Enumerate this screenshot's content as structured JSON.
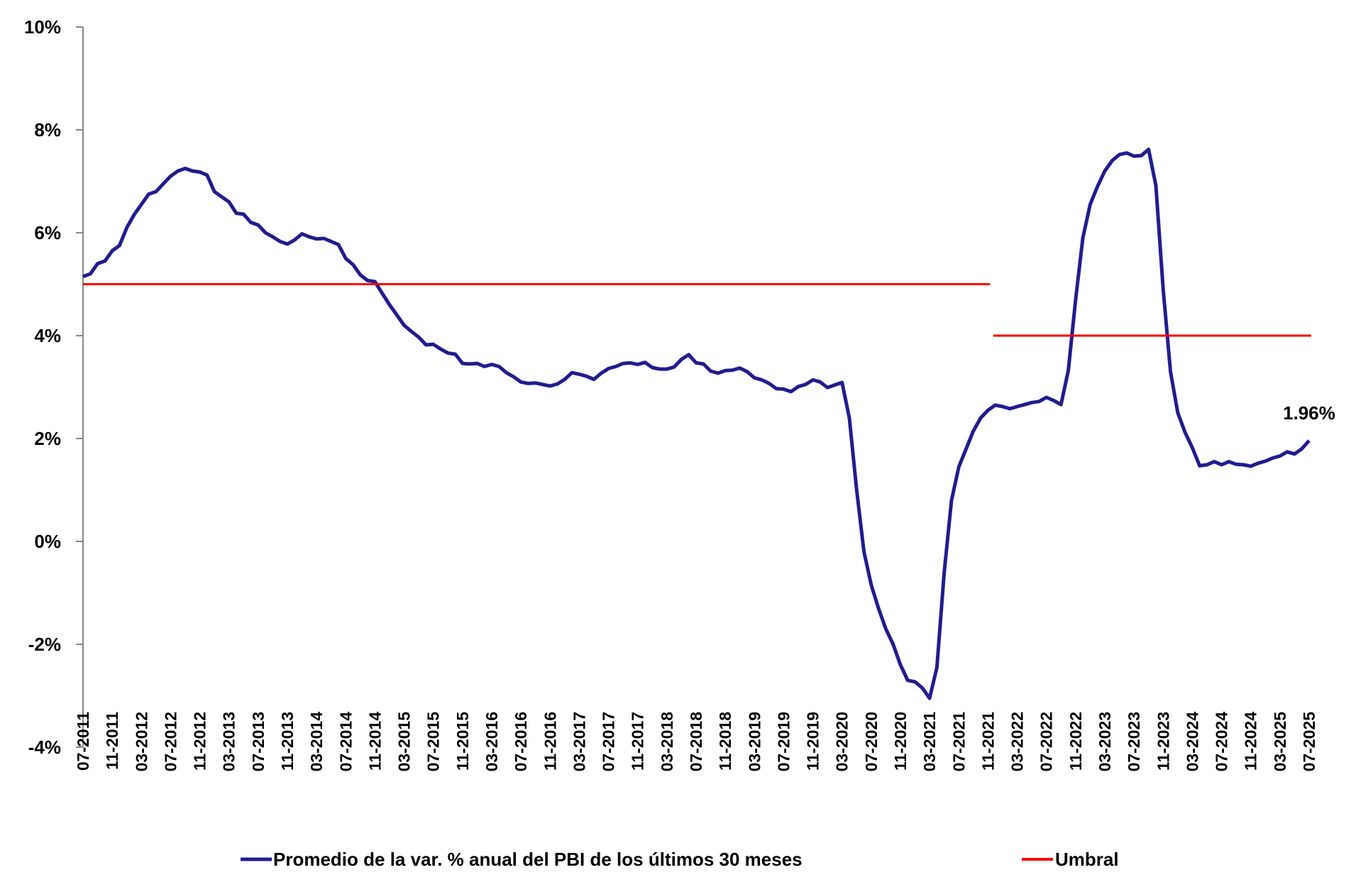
{
  "chart_data": {
    "type": "line",
    "title": "",
    "xlabel": "",
    "ylabel": "",
    "ylim": [
      -4,
      10
    ],
    "y_ticks": [
      "10%",
      "8%",
      "6%",
      "4%",
      "2%",
      "0%",
      "-2%",
      "-4%"
    ],
    "y_tick_values": [
      10,
      8,
      6,
      4,
      2,
      0,
      -2,
      -4
    ],
    "x_tick_every_months": 4,
    "grid": false,
    "legend_position": "bottom",
    "x": [
      "07-2011",
      "08-2011",
      "09-2011",
      "10-2011",
      "11-2011",
      "12-2011",
      "01-2012",
      "02-2012",
      "03-2012",
      "04-2012",
      "05-2012",
      "06-2012",
      "07-2012",
      "08-2012",
      "09-2012",
      "10-2012",
      "11-2012",
      "12-2012",
      "01-2013",
      "02-2013",
      "03-2013",
      "04-2013",
      "05-2013",
      "06-2013",
      "07-2013",
      "08-2013",
      "09-2013",
      "10-2013",
      "11-2013",
      "12-2013",
      "01-2014",
      "02-2014",
      "03-2014",
      "04-2014",
      "05-2014",
      "06-2014",
      "07-2014",
      "08-2014",
      "09-2014",
      "10-2014",
      "11-2014",
      "12-2014",
      "01-2015",
      "02-2015",
      "03-2015",
      "04-2015",
      "05-2015",
      "06-2015",
      "07-2015",
      "08-2015",
      "09-2015",
      "10-2015",
      "11-2015",
      "12-2015",
      "01-2016",
      "02-2016",
      "03-2016",
      "04-2016",
      "05-2016",
      "06-2016",
      "07-2016",
      "08-2016",
      "09-2016",
      "10-2016",
      "11-2016",
      "12-2016",
      "01-2017",
      "02-2017",
      "03-2017",
      "04-2017",
      "05-2017",
      "06-2017",
      "07-2017",
      "08-2017",
      "09-2017",
      "10-2017",
      "11-2017",
      "12-2017",
      "01-2018",
      "02-2018",
      "03-2018",
      "04-2018",
      "05-2018",
      "06-2018",
      "07-2018",
      "08-2018",
      "09-2018",
      "10-2018",
      "11-2018",
      "12-2018",
      "01-2019",
      "02-2019",
      "03-2019",
      "04-2019",
      "05-2019",
      "06-2019",
      "07-2019",
      "08-2019",
      "09-2019",
      "10-2019",
      "11-2019",
      "12-2019",
      "01-2020",
      "02-2020",
      "03-2020",
      "04-2020",
      "05-2020",
      "06-2020",
      "07-2020",
      "08-2020",
      "09-2020",
      "10-2020",
      "11-2020",
      "12-2020",
      "01-2021",
      "02-2021",
      "03-2021",
      "04-2021",
      "05-2021",
      "06-2021",
      "07-2021",
      "08-2021",
      "09-2021",
      "10-2021",
      "11-2021",
      "12-2021",
      "01-2022",
      "02-2022",
      "03-2022",
      "04-2022",
      "05-2022",
      "06-2022",
      "07-2022",
      "08-2022",
      "09-2022",
      "10-2022",
      "11-2022",
      "12-2022",
      "01-2023",
      "02-2023",
      "03-2023",
      "04-2023",
      "05-2023",
      "06-2023",
      "07-2023",
      "08-2023",
      "09-2023",
      "10-2023",
      "11-2023",
      "12-2023",
      "01-2024",
      "02-2024",
      "03-2024",
      "04-2024",
      "05-2024",
      "06-2024",
      "07-2024",
      "08-2024",
      "09-2024",
      "10-2024",
      "11-2024",
      "12-2024",
      "01-2025",
      "02-2025",
      "03-2025",
      "04-2025",
      "05-2025",
      "06-2025",
      "07-2025"
    ],
    "series": [
      {
        "name": "Promedio de la var. % anual del PBI de los últimos 30 meses",
        "color": "#221C8E",
        "values": [
          5.15,
          5.2,
          5.4,
          5.45,
          5.65,
          5.75,
          6.1,
          6.35,
          6.55,
          6.75,
          6.8,
          6.95,
          7.1,
          7.2,
          7.25,
          7.2,
          7.18,
          7.12,
          6.8,
          6.7,
          6.6,
          6.38,
          6.36,
          6.2,
          6.15,
          6.0,
          5.92,
          5.83,
          5.78,
          5.86,
          5.98,
          5.92,
          5.88,
          5.89,
          5.83,
          5.77,
          5.5,
          5.38,
          5.18,
          5.07,
          5.05,
          4.82,
          4.6,
          4.4,
          4.2,
          4.08,
          3.97,
          3.82,
          3.83,
          3.74,
          3.66,
          3.64,
          3.46,
          3.45,
          3.46,
          3.4,
          3.44,
          3.4,
          3.28,
          3.2,
          3.1,
          3.07,
          3.08,
          3.05,
          3.02,
          3.06,
          3.15,
          3.28,
          3.25,
          3.21,
          3.15,
          3.27,
          3.36,
          3.4,
          3.46,
          3.47,
          3.44,
          3.48,
          3.38,
          3.35,
          3.35,
          3.39,
          3.54,
          3.63,
          3.47,
          3.45,
          3.31,
          3.27,
          3.32,
          3.33,
          3.37,
          3.3,
          3.18,
          3.14,
          3.07,
          2.97,
          2.96,
          2.91,
          3.01,
          3.05,
          3.14,
          3.1,
          2.99,
          3.04,
          3.09,
          2.4,
          1.0,
          -0.2,
          -0.85,
          -1.3,
          -1.7,
          -2.0,
          -2.4,
          -2.7,
          -2.73,
          -2.85,
          -3.05,
          -2.45,
          -0.6,
          0.8,
          1.45,
          1.8,
          2.15,
          2.4,
          2.55,
          2.65,
          2.62,
          2.58,
          2.62,
          2.66,
          2.7,
          2.72,
          2.8,
          2.74,
          2.66,
          3.32,
          4.7,
          5.9,
          6.55,
          6.9,
          7.2,
          7.4,
          7.52,
          7.55,
          7.49,
          7.5,
          7.62,
          6.92,
          4.9,
          3.3,
          2.5,
          2.12,
          1.82,
          1.47,
          1.49,
          1.55,
          1.49,
          1.55,
          1.5,
          1.49,
          1.46,
          1.52,
          1.56,
          1.62,
          1.66,
          1.74,
          1.7,
          1.8,
          1.96
        ]
      },
      {
        "name": "Umbral",
        "color": "#FF0000",
        "segments": [
          {
            "from": "07-2011",
            "to": "11-2021",
            "value": 5
          },
          {
            "from": "12-2021",
            "to": "07-2025",
            "value": 4
          }
        ]
      }
    ],
    "annotations": [
      {
        "x": "07-2025",
        "value": 1.96,
        "text": "1.96%"
      }
    ]
  }
}
